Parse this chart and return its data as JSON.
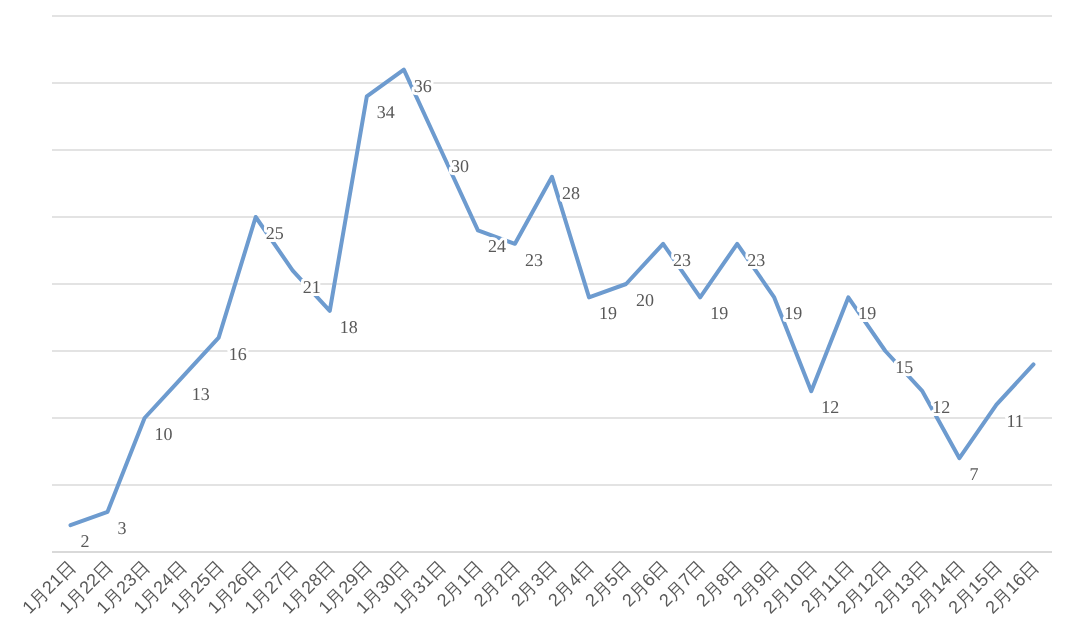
{
  "chart_data": {
    "type": "line",
    "categories": [
      "1月21日",
      "1月22日",
      "1月23日",
      "1月24日",
      "1月25日",
      "1月26日",
      "1月27日",
      "1月28日",
      "1月29日",
      "1月30日",
      "1月31日",
      "2月1日",
      "2月2日",
      "2月3日",
      "2月4日",
      "2月5日",
      "2月6日",
      "2月7日",
      "2月8日",
      "2月9日",
      "2月10日",
      "2月11日",
      "2月12日",
      "2月13日",
      "2月14日",
      "2月15日",
      "2月16日"
    ],
    "series": [
      {
        "color": "#6d9bcf",
        "values": [
          2,
          3,
          10,
          13,
          16,
          25,
          21,
          18,
          34,
          36,
          30,
          24,
          23,
          28,
          19,
          20,
          23,
          19,
          23,
          19,
          12,
          19,
          15,
          12,
          7,
          11,
          14
        ],
        "value_labels": [
          "2",
          "3",
          "10",
          "13",
          "16",
          "25",
          "21",
          "18",
          "34",
          "36",
          "30",
          "24",
          "23",
          "28",
          "19",
          "20",
          "23",
          "19",
          "23",
          "19",
          "12",
          "19",
          "15",
          "12",
          "7",
          "11",
          null
        ]
      }
    ],
    "ylim": [
      0,
      40
    ],
    "yticks": [
      {
        "value": 5,
        "label": null
      },
      {
        "value": 10,
        "label": null
      },
      {
        "value": 15,
        "label": null
      },
      {
        "value": 20,
        "label": null
      },
      {
        "value": 25,
        "label": null
      },
      {
        "value": 30,
        "label": null
      },
      {
        "value": 35,
        "label": null
      },
      {
        "value": 40,
        "label": null
      }
    ],
    "tick_labels": "x",
    "grid": "y",
    "marker": "none",
    "line_style": "solid"
  }
}
